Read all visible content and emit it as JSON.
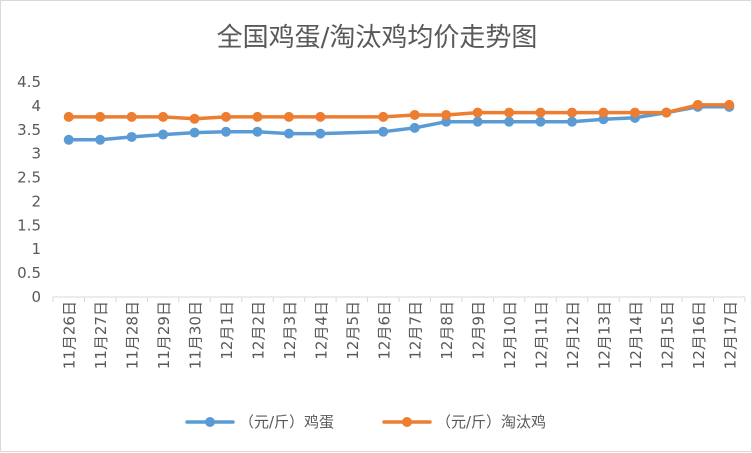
{
  "chart_data": {
    "type": "line",
    "title": "全国鸡蛋/淘汰鸡均价走势图",
    "categories": [
      "11月26日",
      "11月27日",
      "11月28日",
      "11月29日",
      "11月30日",
      "12月1日",
      "12月2日",
      "12月3日",
      "12月4日",
      "12月5日",
      "12月6日",
      "12月7日",
      "12月8日",
      "12月9日",
      "12月10日",
      "12月11日",
      "12月12日",
      "12月13日",
      "12月14日",
      "12月15日",
      "12月16日",
      "12月17日"
    ],
    "y_ticks": [
      "0",
      "0.5",
      "1",
      "1.5",
      "2",
      "2.5",
      "3",
      "3.5",
      "4",
      "4.5"
    ],
    "ylim": [
      0,
      4.5
    ],
    "grid": false,
    "legend_position": "bottom",
    "series": [
      {
        "name": "（元/斤）鸡蛋",
        "color": "#5b9bd5",
        "values": [
          3.29,
          3.29,
          3.35,
          3.4,
          3.44,
          3.46,
          3.46,
          3.42,
          3.42,
          null,
          3.46,
          3.54,
          3.67,
          3.67,
          3.67,
          3.67,
          3.67,
          3.72,
          3.75,
          3.86,
          3.98,
          3.98
        ]
      },
      {
        "name": "（元/斤）淘汰鸡",
        "color": "#ed7d31",
        "values": [
          3.77,
          3.77,
          3.77,
          3.77,
          3.73,
          3.77,
          3.77,
          3.77,
          3.77,
          null,
          3.77,
          3.81,
          3.81,
          3.86,
          3.86,
          3.86,
          3.86,
          3.86,
          3.86,
          3.86,
          4.02,
          4.02
        ]
      }
    ]
  }
}
